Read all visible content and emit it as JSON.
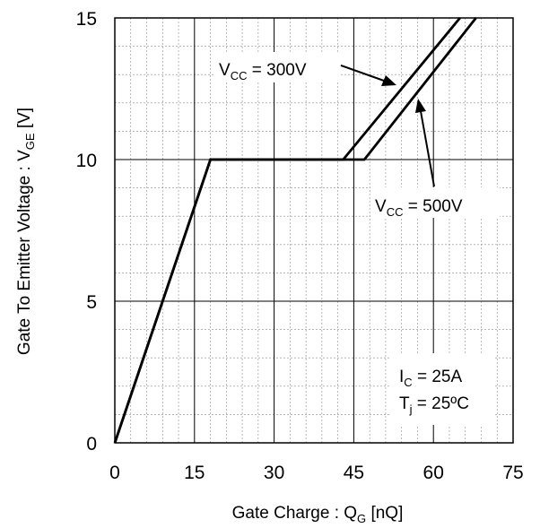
{
  "chart_data": {
    "type": "line",
    "xlabel": {
      "main": "Gate Charge : Q",
      "sub": "G",
      "tail": " [nQ]"
    },
    "ylabel": {
      "main": "Gate To Emitter  Voltage : V",
      "sub": "GE",
      "tail": " [V]"
    },
    "xlim": [
      0,
      75
    ],
    "ylim": [
      0,
      15
    ],
    "x_ticks": [
      0,
      15,
      30,
      45,
      60,
      75
    ],
    "y_ticks": [
      0,
      5,
      10,
      15
    ],
    "x_tick_labels": [
      "0",
      "15",
      "30",
      "45",
      "60",
      "75"
    ],
    "y_tick_labels": [
      "0",
      "5",
      "10",
      "15"
    ],
    "grid": {
      "major": true,
      "minor": true,
      "minor_x_step": 3,
      "minor_y_step": 1
    },
    "series": [
      {
        "name": "V_CC = 300V",
        "x": [
          0,
          18,
          43,
          65
        ],
        "y": [
          0,
          10,
          10,
          15
        ]
      },
      {
        "name": "V_CC = 500V",
        "x": [
          0,
          18,
          47,
          68
        ],
        "y": [
          0,
          10,
          10,
          15
        ]
      }
    ],
    "annotations": [
      {
        "id": "vcc300",
        "main": "V",
        "sub": "CC",
        "tail": " = 300V"
      },
      {
        "id": "vcc500",
        "main": "V",
        "sub": "CC",
        "tail": " = 500V"
      },
      {
        "id": "ic",
        "main": "I",
        "sub": "C",
        "tail": " = 25A"
      },
      {
        "id": "tj",
        "main": "T",
        "sub": "j",
        "tail": " = 25ºC"
      }
    ]
  }
}
